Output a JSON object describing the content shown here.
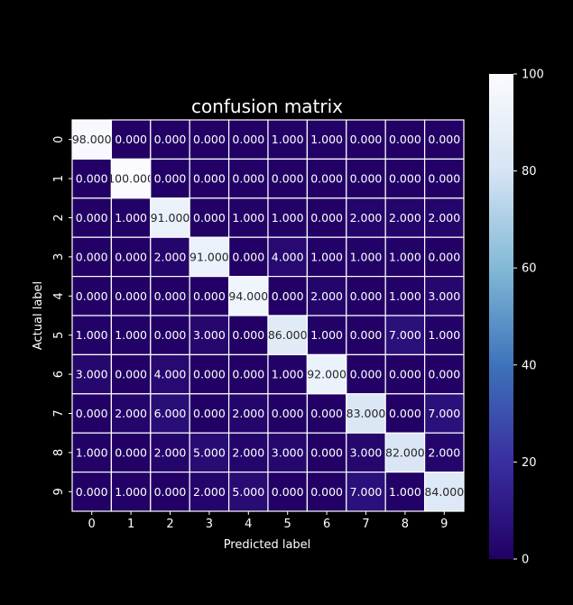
{
  "chart_data": {
    "type": "heatmap",
    "title": "confusion matrix",
    "xlabel": "Predicted label",
    "ylabel": "Actual label",
    "x_categories": [
      "0",
      "1",
      "2",
      "3",
      "4",
      "5",
      "6",
      "7",
      "8",
      "9"
    ],
    "y_categories": [
      "0",
      "1",
      "2",
      "3",
      "4",
      "5",
      "6",
      "7",
      "8",
      "9"
    ],
    "values": [
      [
        98,
        0,
        0,
        0,
        0,
        1,
        1,
        0,
        0,
        0
      ],
      [
        0,
        100,
        0,
        0,
        0,
        0,
        0,
        0,
        0,
        0
      ],
      [
        0,
        1,
        91,
        0,
        1,
        1,
        0,
        2,
        2,
        2
      ],
      [
        0,
        0,
        2,
        91,
        0,
        4,
        1,
        1,
        1,
        0
      ],
      [
        0,
        0,
        0,
        0,
        94,
        0,
        2,
        0,
        1,
        3
      ],
      [
        1,
        1,
        0,
        3,
        0,
        86,
        1,
        0,
        7,
        1
      ],
      [
        3,
        0,
        4,
        0,
        0,
        1,
        92,
        0,
        0,
        0
      ],
      [
        0,
        2,
        6,
        0,
        2,
        0,
        0,
        83,
        0,
        7
      ],
      [
        1,
        0,
        2,
        5,
        2,
        3,
        0,
        3,
        82,
        2
      ],
      [
        0,
        1,
        0,
        2,
        5,
        0,
        0,
        7,
        1,
        84
      ]
    ],
    "value_format": "0.000",
    "colormap": "Purples_r",
    "colorbar": {
      "min": 0,
      "max": 100,
      "ticks": [
        0,
        20,
        40,
        60,
        80,
        100
      ]
    },
    "colors": {
      "background": "#000000",
      "text": "#ffffff",
      "cell_text": "#262626",
      "grid_line": "#ffffff",
      "colormap_stops": [
        "#220065",
        "#3a2ea0",
        "#3d73ba",
        "#82b9d6",
        "#d6e4f4",
        "#fbfbff"
      ]
    }
  }
}
